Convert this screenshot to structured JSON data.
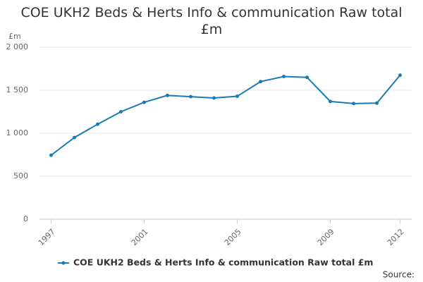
{
  "chart_data": {
    "type": "line",
    "title": "COE UKH2 Beds & Herts Info & communication Raw total £m",
    "y_label": "£m",
    "source": "Source:",
    "x": [
      1997,
      1998,
      1999,
      2000,
      2001,
      2002,
      2003,
      2004,
      2005,
      2006,
      2007,
      2008,
      2009,
      2010,
      2011,
      2012
    ],
    "series": [
      {
        "name": "COE UKH2 Beds & Herts Info & communication Raw total £m",
        "color": "#1a7ab5",
        "values": [
          745,
          950,
          1105,
          1250,
          1360,
          1440,
          1425,
          1410,
          1430,
          1600,
          1660,
          1650,
          1370,
          1345,
          1350,
          1675
        ]
      }
    ],
    "xlim": [
      1996.5,
      2012.5
    ],
    "xticks": [
      1997,
      2001,
      2005,
      2009,
      2012
    ],
    "ylim": [
      0,
      2000
    ],
    "yticks": [
      0,
      500,
      {
        "value": 1000,
        "label": "1 000"
      },
      {
        "value": 1500,
        "label": "1 500"
      },
      {
        "value": 2000,
        "label": "2 000"
      }
    ],
    "grid": true,
    "legend": "bottom"
  }
}
